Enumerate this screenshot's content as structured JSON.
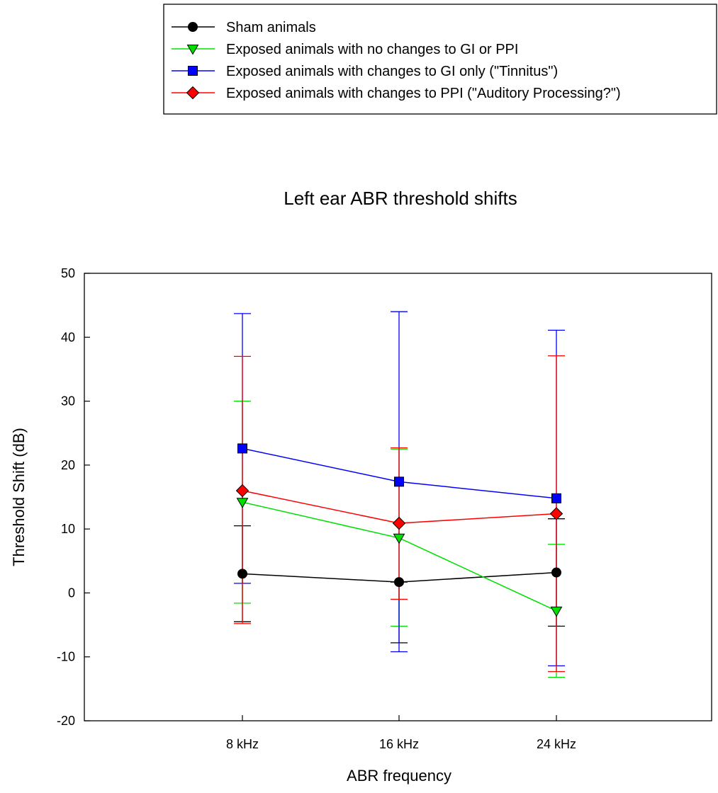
{
  "chart_data": {
    "type": "line",
    "title": "Left ear ABR threshold shifts",
    "xlabel": "ABR frequency",
    "ylabel": "Threshold Shift (dB)",
    "categories": [
      "8 kHz",
      "16 kHz",
      "24 kHz"
    ],
    "ylim": [
      -20,
      50
    ],
    "yticks": [
      -20,
      -10,
      0,
      10,
      20,
      30,
      40,
      50
    ],
    "grid": false,
    "legend_position": "top-right",
    "series": [
      {
        "name": "Sham animals",
        "color": "#000000",
        "marker": "circle",
        "values": [
          3.0,
          1.7,
          3.2
        ],
        "err_upper": [
          10.5,
          1.7,
          11.6
        ],
        "err_lower": [
          -4.5,
          -7.8,
          -5.2
        ]
      },
      {
        "name": "Exposed animals with no changes to GI or PPI",
        "color": "#00e000",
        "marker": "triangle-down",
        "values": [
          14.2,
          8.6,
          -2.8
        ],
        "err_upper": [
          30.0,
          22.5,
          7.6
        ],
        "err_lower": [
          -1.6,
          -5.2,
          -13.2
        ]
      },
      {
        "name": "Exposed animals with changes to GI only (\"Tinnitus\")",
        "color": "#0000ff",
        "marker": "square",
        "values": [
          22.6,
          17.4,
          14.8
        ],
        "err_upper": [
          43.7,
          44.0,
          41.1
        ],
        "err_lower": [
          1.5,
          -9.2,
          -11.4
        ]
      },
      {
        "name": "Exposed animals with changes to PPI (\"Auditory Processing?\")",
        "color": "#ff0000",
        "marker": "diamond",
        "values": [
          16.0,
          10.9,
          12.4
        ],
        "err_upper": [
          37.0,
          22.7,
          37.1
        ],
        "err_lower": [
          -4.8,
          -1.0,
          -12.3
        ]
      }
    ]
  }
}
